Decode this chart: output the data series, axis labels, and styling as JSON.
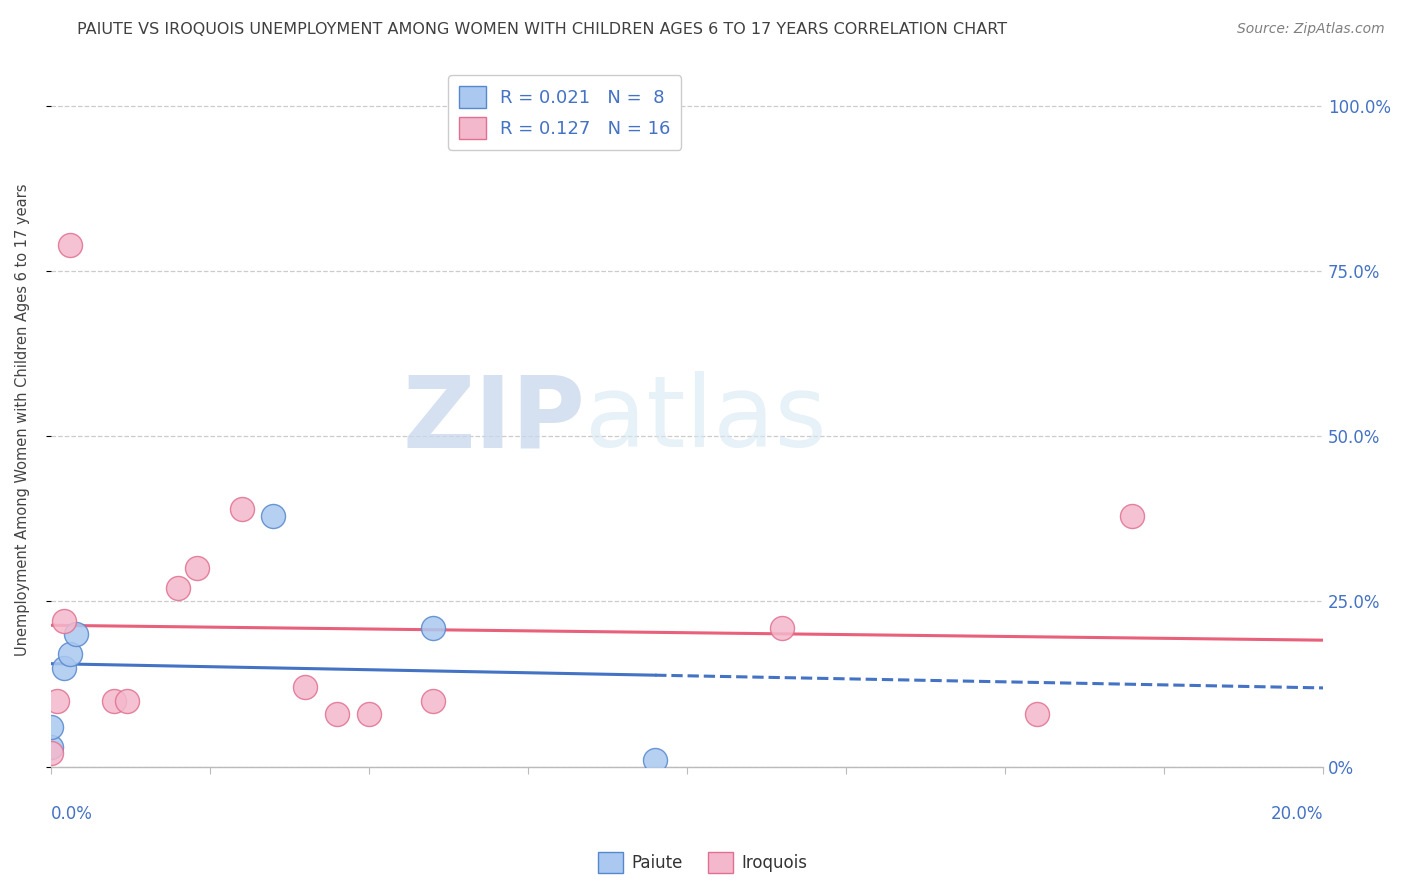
{
  "title": "PAIUTE VS IROQUOIS UNEMPLOYMENT AMONG WOMEN WITH CHILDREN AGES 6 TO 17 YEARS CORRELATION CHART",
  "source": "Source: ZipAtlas.com",
  "ylabel": "Unemployment Among Women with Children Ages 6 to 17 years",
  "ytick_values": [
    0.0,
    0.25,
    0.5,
    0.75,
    1.0
  ],
  "ytick_labels": [
    "0%",
    "25.0%",
    "50.0%",
    "75.0%",
    "100.0%"
  ],
  "xlim": [
    0.0,
    0.2
  ],
  "ylim": [
    0.0,
    1.05
  ],
  "watermark_zip": "ZIP",
  "watermark_atlas": "atlas",
  "paiute_color": "#aac8f0",
  "paiute_edge_color": "#5588cc",
  "paiute_line_color": "#4472c4",
  "iroquois_color": "#f4b8cc",
  "iroquois_edge_color": "#e07090",
  "iroquois_line_color": "#e8607a",
  "legend_r_n_color": "#4472c4",
  "legend_label_color": "#333333",
  "axis_tick_color": "#4472c4",
  "grid_color": "#cccccc",
  "title_color": "#404040",
  "source_color": "#808080",
  "paiute_x": [
    0.0,
    0.0,
    0.002,
    0.003,
    0.004,
    0.035,
    0.06,
    0.095
  ],
  "paiute_y": [
    0.03,
    0.06,
    0.15,
    0.17,
    0.2,
    0.38,
    0.21,
    0.01
  ],
  "iroquois_x": [
    0.0,
    0.001,
    0.002,
    0.003,
    0.01,
    0.012,
    0.02,
    0.023,
    0.03,
    0.04,
    0.045,
    0.05,
    0.06,
    0.115,
    0.155,
    0.17
  ],
  "iroquois_y": [
    0.02,
    0.1,
    0.22,
    0.79,
    0.1,
    0.1,
    0.27,
    0.3,
    0.39,
    0.12,
    0.08,
    0.08,
    0.1,
    0.21,
    0.08,
    0.38
  ],
  "marker_size": 300,
  "title_fontsize": 11.5,
  "legend_fontsize": 13,
  "tick_fontsize": 12,
  "source_fontsize": 10,
  "ylabel_fontsize": 10.5
}
